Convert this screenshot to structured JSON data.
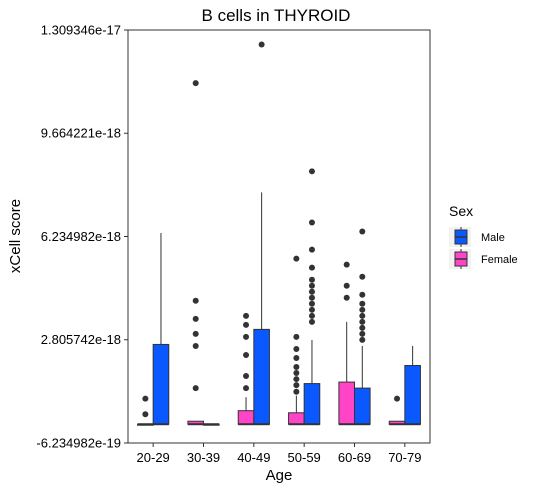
{
  "chart_data": {
    "type": "box",
    "title": "B cells in THYROID",
    "xlabel": "Age",
    "ylabel": "xCell score",
    "categories": [
      "20-29",
      "30-39",
      "40-49",
      "50-59",
      "60-69",
      "70-79"
    ],
    "y_ticks": [
      {
        "value": -6.234982e-19,
        "label": "-6.234982e-19"
      },
      {
        "value": 2.805742e-18,
        "label": "2.805742e-18"
      },
      {
        "value": 6.234982e-18,
        "label": "6.234982e-18"
      },
      {
        "value": 9.664221e-18,
        "label": "9.664221e-18"
      },
      {
        "value": 1.309346e-17,
        "label": "1.309346e-17"
      }
    ],
    "ylim": [
      -6.234982e-19,
      1.309346e-17
    ],
    "grid": false,
    "legend": {
      "title": "Sex",
      "placement": "right",
      "entries": [
        {
          "name": "Male",
          "color": "#0a58ff"
        },
        {
          "name": "Female",
          "color": "#ff44c8"
        }
      ]
    },
    "series": [
      {
        "name": "Female",
        "color": "#ff44c8",
        "boxes": [
          {
            "category": "20-29",
            "min": 0,
            "q1": 0,
            "median": 0,
            "q3": 0,
            "max": 0,
            "outliers": [
              8.5e-19,
              3.3e-19
            ]
          },
          {
            "category": "30-39",
            "min": 0,
            "q1": 0,
            "median": 0,
            "q3": 1e-19,
            "max": 1e-19,
            "outliers": [
              4.1e-18,
              1.2e-18,
              3.5e-18,
              3e-18,
              2.6e-18,
              1.133e-17
            ]
          },
          {
            "category": "40-49",
            "min": 0,
            "q1": 0,
            "median": 0,
            "q3": 4.5e-19,
            "max": 9e-19,
            "outliers": [
              3.6e-18,
              3.3e-18,
              2.9e-18,
              2.3e-18,
              1.6e-18,
              1.2e-18
            ]
          },
          {
            "category": "50-59",
            "min": 0,
            "q1": 0,
            "median": 0,
            "q3": 3.8e-19,
            "max": 9.5e-19,
            "outliers": [
              1.08e-18,
              1.3e-18,
              1.5e-18,
              1.7e-18,
              1.9e-18,
              2.2e-18,
              2.5e-18,
              2.9e-18,
              5.5e-18
            ]
          },
          {
            "category": "60-69",
            "min": 0,
            "q1": 0,
            "median": 0,
            "q3": 1.4e-18,
            "max": 3.4e-18,
            "outliers": [
              4.2e-18,
              4.6e-18,
              5.3e-18
            ]
          },
          {
            "category": "70-79",
            "min": 0,
            "q1": 0,
            "median": 0,
            "q3": 1e-19,
            "max": 1e-19,
            "outliers": [
              8.5e-19
            ]
          }
        ]
      },
      {
        "name": "Male",
        "color": "#0a58ff",
        "boxes": [
          {
            "category": "20-29",
            "min": 0,
            "q1": 0,
            "median": 0,
            "q3": 2.65e-18,
            "max": 6.35e-18,
            "outliers": []
          },
          {
            "category": "30-39",
            "min": 0,
            "q1": 0,
            "median": 0,
            "q3": 0,
            "max": 0,
            "outliers": []
          },
          {
            "category": "40-49",
            "min": 0,
            "q1": 0,
            "median": 0,
            "q3": 3.15e-18,
            "max": 7.7e-18,
            "outliers": [
              1.261e-17
            ]
          },
          {
            "category": "50-59",
            "min": 0,
            "q1": 0,
            "median": 0,
            "q3": 1.35e-18,
            "max": 2.8e-18,
            "outliers": [
              3.4e-18,
              3.6e-18,
              3.8e-18,
              4e-18,
              4.2e-18,
              4.4e-18,
              4.6e-18,
              4.8e-18,
              5.2e-18,
              5.8e-18,
              6.7e-18,
              8.4e-18
            ]
          },
          {
            "category": "60-69",
            "min": 0,
            "q1": 0,
            "median": 0,
            "q3": 1.2e-18,
            "max": 2.6e-18,
            "outliers": [
              2.8e-18,
              3e-18,
              3.2e-18,
              3.4e-18,
              3.6e-18,
              3.8e-18,
              4e-18,
              4.3e-18,
              4.9e-18,
              6.4e-18
            ]
          },
          {
            "category": "70-79",
            "min": 0,
            "q1": 0,
            "median": 0,
            "q3": 1.95e-18,
            "max": 2.6e-18,
            "outliers": []
          }
        ]
      }
    ]
  }
}
